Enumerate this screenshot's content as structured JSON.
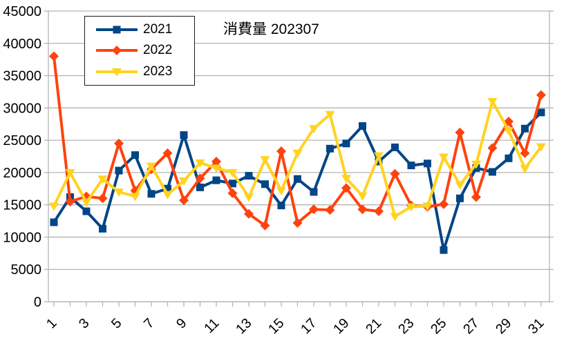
{
  "chart_data": {
    "type": "line",
    "title": "消費量 202307",
    "categories": [
      1,
      2,
      3,
      4,
      5,
      6,
      7,
      8,
      9,
      10,
      11,
      12,
      13,
      14,
      15,
      16,
      17,
      18,
      19,
      20,
      21,
      22,
      23,
      24,
      25,
      26,
      27,
      28,
      29,
      30,
      31
    ],
    "x_tick_label_step": 2,
    "x_labels_shown": [
      "1",
      "3",
      "5",
      "7",
      "9",
      "11",
      "13",
      "15",
      "17",
      "19",
      "21",
      "23",
      "25",
      "27",
      "29",
      "31"
    ],
    "ylim": [
      0,
      45000
    ],
    "y_tick_interval": 5000,
    "y_tick_labels": [
      "0",
      "5000",
      "10000",
      "15000",
      "20000",
      "25000",
      "30000",
      "35000",
      "40000",
      "45000"
    ],
    "grid": "horizontal",
    "legend_position": "top-left-inside",
    "series": [
      {
        "name": "2021",
        "color": "#004586",
        "marker": "square",
        "values": [
          12300,
          16200,
          14000,
          11300,
          20300,
          22700,
          16700,
          17500,
          25800,
          17700,
          18800,
          18300,
          19500,
          18200,
          14900,
          19000,
          17000,
          23700,
          24500,
          27200,
          21700,
          23900,
          21100,
          21400,
          8000,
          16000,
          20700,
          20100,
          22200,
          26800,
          29300
        ]
      },
      {
        "name": "2022",
        "color": "#FF420E",
        "marker": "diamond",
        "values": [
          38000,
          15500,
          16300,
          16000,
          24500,
          17200,
          20500,
          23000,
          15700,
          19100,
          21700,
          16800,
          13600,
          11800,
          23300,
          12200,
          14300,
          14200,
          17600,
          14300,
          14000,
          19800,
          14900,
          14700,
          15100,
          26200,
          16200,
          23800,
          27900,
          23000,
          32000
        ]
      },
      {
        "name": "2023",
        "color": "#FFD320",
        "marker": "triangle-down",
        "values": [
          14800,
          20000,
          15400,
          19000,
          17000,
          16300,
          21000,
          16600,
          18700,
          21500,
          20700,
          20000,
          16200,
          22000,
          17200,
          23000,
          26800,
          29000,
          19100,
          16400,
          22600,
          13200,
          14700,
          14800,
          22400,
          18100,
          21300,
          31000,
          26500,
          20600,
          24000
        ]
      }
    ],
    "colors": {
      "background": "#ffffff",
      "gridline": "#b3b3b3",
      "axis": "#b3b3b3",
      "text": "#000000",
      "legend_border": "#1a1a1a"
    }
  }
}
